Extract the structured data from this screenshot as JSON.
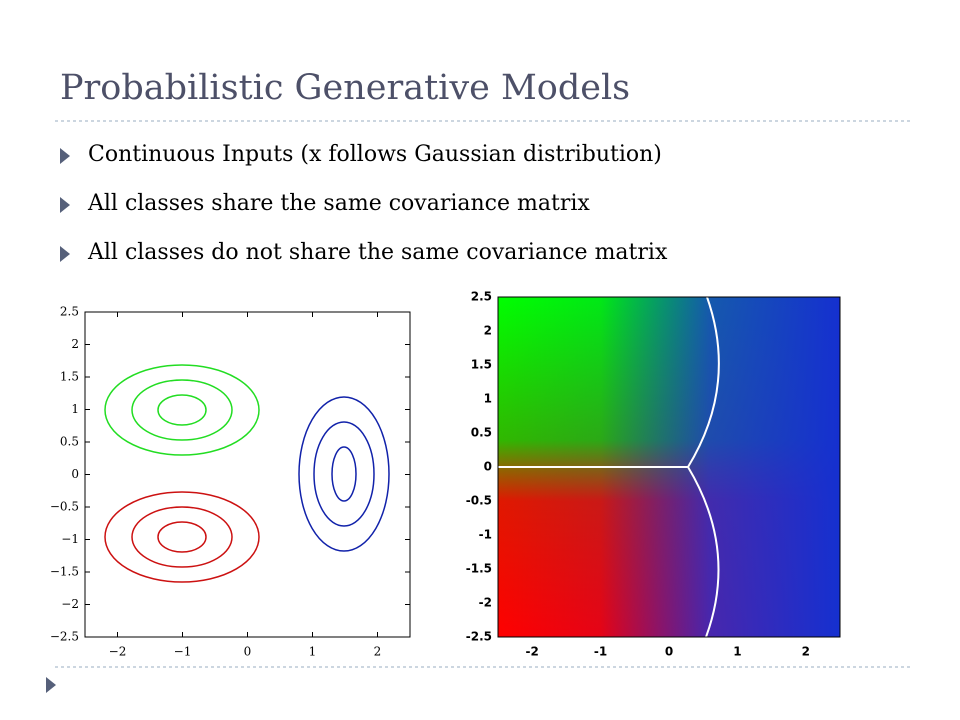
{
  "header": {
    "title": "Probabilistic Generative Models"
  },
  "bullets": [
    "Continuous Inputs (x follows Gaussian distribution)",
    "All classes share the same covariance matrix",
    "All classes do not share the same covariance matrix"
  ],
  "figures": [
    {
      "xlim": [
        -2.5,
        2.5
      ],
      "ylim": [
        -2.5,
        2.5
      ],
      "xticks": [
        {
          "value": -2,
          "label": "−2"
        },
        {
          "value": -1,
          "label": "−1"
        },
        0,
        1,
        2
      ],
      "yticks": [
        {
          "value": -2.5,
          "label": "−2.5"
        },
        {
          "value": -2,
          "label": "−2"
        },
        {
          "value": -1.5,
          "label": "−1.5"
        },
        {
          "value": -1,
          "label": "−1"
        },
        {
          "value": -0.5,
          "label": "−0.5"
        },
        0,
        0.5,
        1,
        1.5,
        2,
        2.5
      ]
    },
    {
      "xlim": [
        -2.5,
        2.5
      ],
      "ylim": [
        -2.5,
        2.5
      ],
      "xticks": [
        -2,
        -1,
        0,
        1,
        2
      ],
      "yticks": [
        -2.5,
        -2,
        -1.5,
        -1,
        -0.5,
        0,
        0.5,
        1,
        1.5,
        2,
        2.5
      ]
    }
  ]
}
